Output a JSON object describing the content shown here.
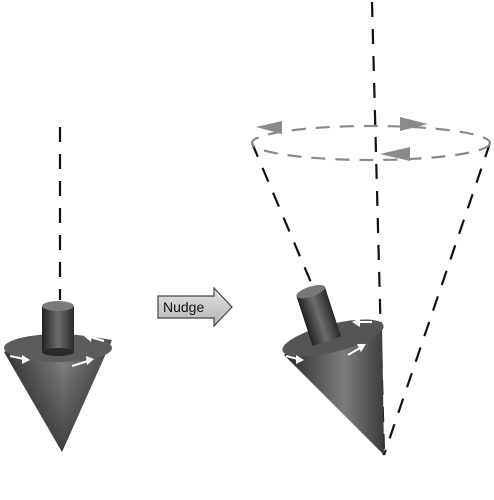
{
  "labels": {
    "nudge": "Nudge"
  },
  "colors": {
    "background": "#ffffff",
    "axis_dash": "#111111",
    "precession_dash": "#8a8a8a",
    "nudge_fill": "#c8c8c8",
    "top_dark": "#1e1e1e",
    "top_light": "#8c8c8c",
    "spin_arrow": "#ffffff"
  },
  "icons": {
    "nudge": "right-arrow-icon",
    "spin": "rotation-arrow-icon",
    "precession": "precession-arrow-icon"
  }
}
